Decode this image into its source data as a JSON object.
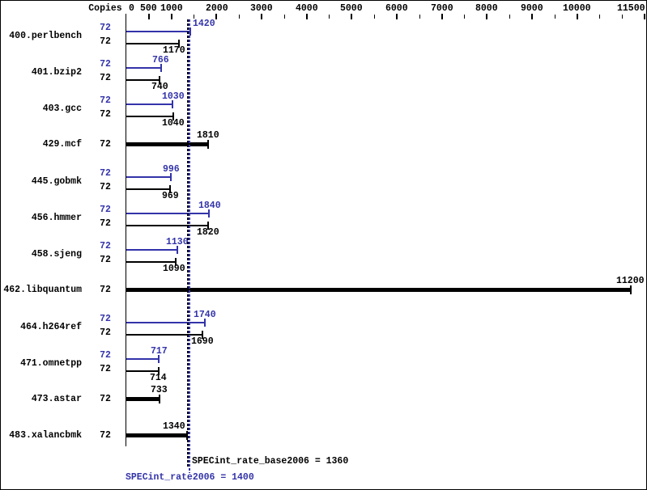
{
  "copies_header": "Copies",
  "colors": {
    "peak": "#3333aa",
    "base": "#000000",
    "background": "#ffffff",
    "border": "#000000"
  },
  "chart_data": {
    "type": "bar",
    "orientation": "horizontal",
    "x_axis": {
      "min": 0,
      "max": 11500,
      "tick_interval": 500,
      "labeled_ticks": [
        0,
        500,
        1000,
        2000,
        3000,
        4000,
        5000,
        6000,
        7000,
        8000,
        9000,
        10000,
        11500
      ]
    },
    "series_meaning": {
      "peak": "SPECint_rate2006 (blue bars)",
      "base": "SPECint_rate_base2006 (black bars)",
      "single": "base and peak shown as one combined thick bar"
    },
    "reference_lines": [
      {
        "id": "peak_mean",
        "label": "SPECint_rate2006 = 1400",
        "value": 1400,
        "color": "#3333aa"
      },
      {
        "id": "base_mean",
        "label": "SPECint_rate_base2006 = 1360",
        "value": 1360,
        "color": "#000000"
      }
    ],
    "rows": [
      {
        "benchmark": "400.perlbench",
        "copies": 72,
        "peak": 1420,
        "base": 1170
      },
      {
        "benchmark": "401.bzip2",
        "copies": 72,
        "peak": 766,
        "base": 740
      },
      {
        "benchmark": "403.gcc",
        "copies": 72,
        "peak": 1030,
        "base": 1040
      },
      {
        "benchmark": "429.mcf",
        "copies": 72,
        "single": true,
        "value": 1810
      },
      {
        "benchmark": "445.gobmk",
        "copies": 72,
        "peak": 996,
        "base": 969
      },
      {
        "benchmark": "456.hmmer",
        "copies": 72,
        "peak": 1840,
        "base": 1820
      },
      {
        "benchmark": "458.sjeng",
        "copies": 72,
        "peak": 1130,
        "base": 1090
      },
      {
        "benchmark": "462.libquantum",
        "copies": 72,
        "single": true,
        "value": 11200
      },
      {
        "benchmark": "464.h264ref",
        "copies": 72,
        "peak": 1740,
        "base": 1690
      },
      {
        "benchmark": "471.omnetpp",
        "copies": 72,
        "peak": 717,
        "base": 714
      },
      {
        "benchmark": "473.astar",
        "copies": 72,
        "single": true,
        "value": 733
      },
      {
        "benchmark": "483.xalancbmk",
        "copies": 72,
        "single": true,
        "value": 1340
      }
    ]
  }
}
